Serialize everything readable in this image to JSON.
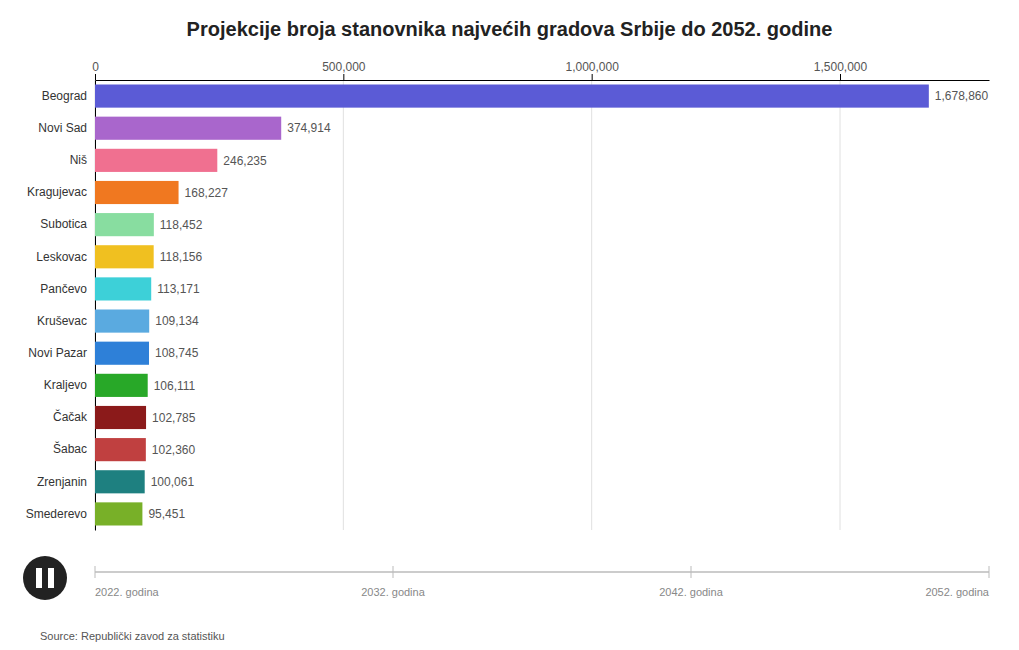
{
  "chart_data": {
    "type": "bar",
    "orientation": "horizontal",
    "title": "Projekcije broja stanovnika najvećih gradova Srbije do 2052. godine",
    "categories": [
      "Beograd",
      "Novi Sad",
      "Niš",
      "Kragujevac",
      "Subotica",
      "Leskovac",
      "Pančevo",
      "Kruševac",
      "Novi Pazar",
      "Kraljevo",
      "Čačak",
      "Šabac",
      "Zrenjanin",
      "Smederevo"
    ],
    "values": [
      1678860,
      374914,
      246235,
      168227,
      118452,
      118156,
      113171,
      109134,
      108745,
      106111,
      102785,
      102360,
      100061,
      95451
    ],
    "value_labels": [
      "1,678,860",
      "374,914",
      "246,235",
      "168,227",
      "118,452",
      "118,156",
      "113,171",
      "109,134",
      "108,745",
      "106,111",
      "102,785",
      "102,360",
      "100,061",
      "95,451"
    ],
    "colors": [
      "#5b5bd6",
      "#a966cc",
      "#f07090",
      "#f07820",
      "#88dda0",
      "#f0c020",
      "#3dd0d8",
      "#5aaae0",
      "#2e80d8",
      "#28a828",
      "#8b1a1a",
      "#c04040",
      "#1e8080",
      "#78b028"
    ],
    "xlim": [
      0,
      1800000
    ],
    "xticks": [
      0,
      {
        "value": 500000,
        "label": "500,000"
      },
      {
        "value": 1000000,
        "label": "1,000,000"
      },
      {
        "value": 1500000,
        "label": "1,500,000"
      }
    ],
    "grid": true,
    "data_labels": true,
    "annotations": [
      "2022. godina",
      "2032. godina",
      "2042. godina",
      "2052. godina"
    ],
    "source": "Source: Republički zavod za statistiku"
  }
}
